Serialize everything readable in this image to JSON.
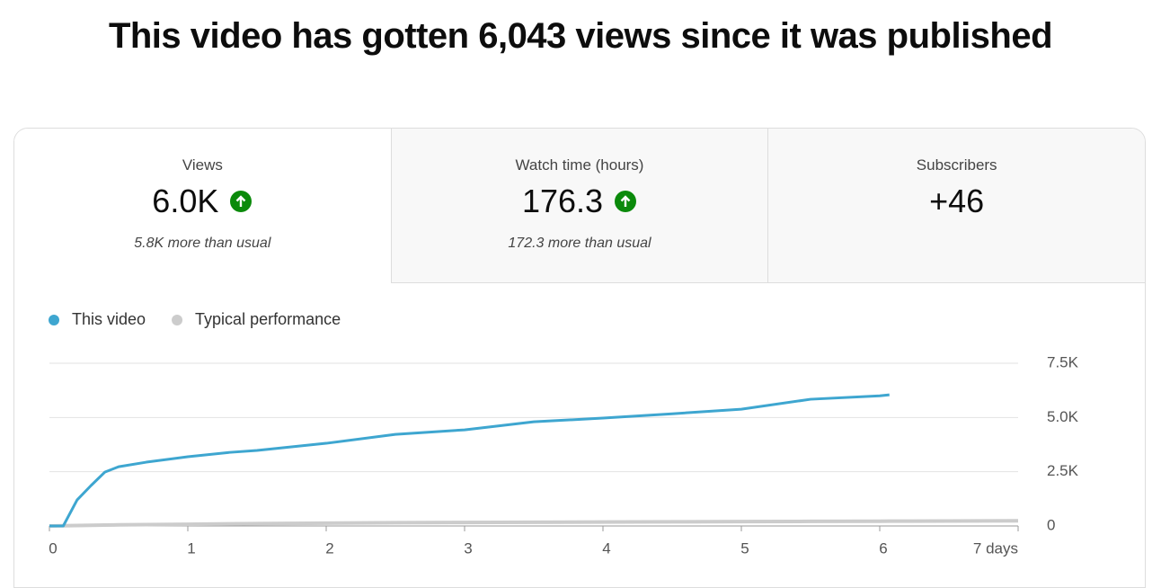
{
  "header": {
    "title": "This video has gotten 6,043 views since it was published"
  },
  "metrics": [
    {
      "label": "Views",
      "value": "6.0K",
      "note": "5.8K more than usual"
    },
    {
      "label": "Watch time (hours)",
      "value": "176.3",
      "note": "172.3 more than usual"
    },
    {
      "label": "Subscribers",
      "value": "+46"
    }
  ],
  "chart_data": {
    "type": "line",
    "x": [
      0,
      0.1,
      0.2,
      0.3,
      0.4,
      0.5,
      0.7,
      1,
      1.3,
      1.5,
      2,
      2.5,
      3,
      3.5,
      4,
      4.5,
      5,
      5.5,
      6,
      6.07,
      6.5,
      7
    ],
    "series": [
      {
        "name": "This video",
        "color": "#3ea6d0",
        "values": [
          0,
          0,
          1200,
          1860,
          2480,
          2730,
          2940,
          3190,
          3390,
          3480,
          3810,
          4220,
          4430,
          4800,
          4970,
          5170,
          5380,
          5840,
          6000,
          6043,
          null,
          null
        ]
      },
      {
        "name": "Typical performance",
        "color": "#cccccc",
        "values": [
          0,
          10,
          20,
          30,
          40,
          50,
          60,
          80,
          100,
          110,
          130,
          150,
          160,
          170,
          180,
          190,
          200,
          210,
          220,
          222,
          230,
          240
        ]
      }
    ],
    "xlim": [
      0,
      7
    ],
    "xticks": [
      0,
      1,
      2,
      3,
      4,
      5,
      6,
      {
        "value": 7,
        "label": "7 days"
      }
    ],
    "ylim": [
      0,
      7500
    ],
    "yticks": [
      0,
      {
        "value": 2500,
        "label": "2.5K"
      },
      {
        "value": 5000,
        "label": "5.0K"
      },
      {
        "value": 7500,
        "label": "7.5K"
      }
    ],
    "grid": true,
    "legend": "top-left"
  }
}
